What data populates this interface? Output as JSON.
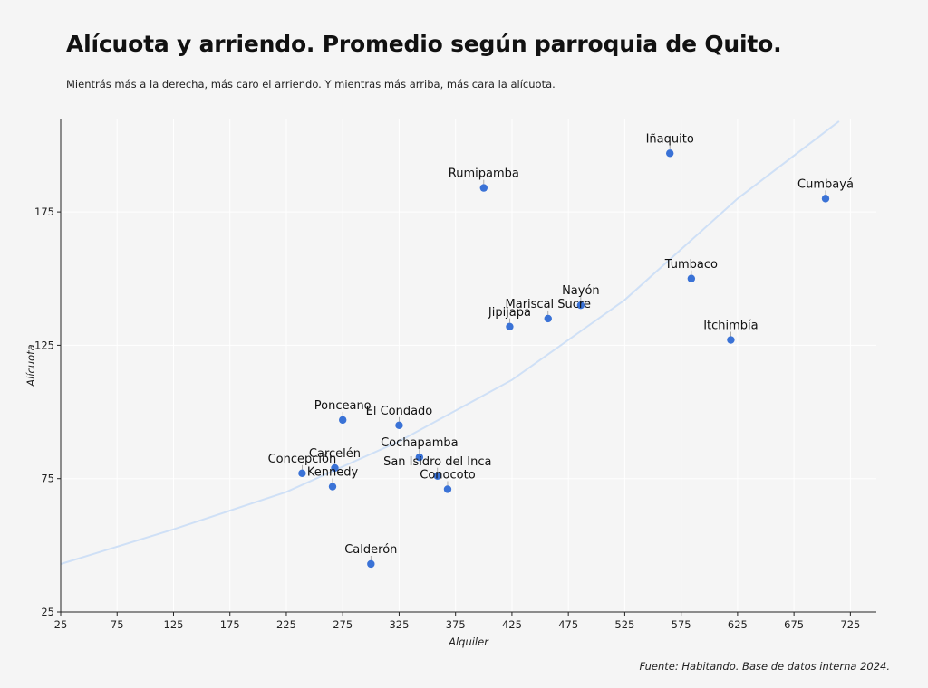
{
  "header": {
    "title": "Alícuota y arriendo. Promedio según parroquia de Quito.",
    "subtitle": "Mientrás más a la derecha, más caro el arriendo. Y mientras más arriba, más cara la alícuota."
  },
  "caption": "Fuente: Habitando. Base de datos interna 2024.",
  "colors": {
    "background": "#f5f5f5",
    "point": "#3a72d6",
    "trend": "#cfe0f6",
    "grid": "#ffffff",
    "axis": "#222222"
  },
  "chart_data": {
    "type": "scatter",
    "title": "Alícuota y arriendo. Promedio según parroquia de Quito.",
    "subtitle": "Mientrás más a la derecha, más caro el arriendo. Y mientras más arriba, más cara la alícuota.",
    "xlabel": "Alquiler",
    "ylabel": "Alícuota",
    "xlim": [
      25,
      748
    ],
    "ylim": [
      25,
      210
    ],
    "xticks": [
      25,
      75,
      125,
      175,
      225,
      275,
      325,
      375,
      425,
      475,
      525,
      575,
      625,
      675,
      725
    ],
    "yticks": [
      25,
      75,
      125,
      175
    ],
    "grid": true,
    "trendline": {
      "type": "exponential",
      "points": [
        [
          25,
          43
        ],
        [
          125,
          56
        ],
        [
          225,
          70
        ],
        [
          325,
          89
        ],
        [
          425,
          112
        ],
        [
          525,
          142
        ],
        [
          625,
          180
        ],
        [
          715,
          209
        ]
      ]
    },
    "points": [
      {
        "label": "Iñaquito",
        "x": 565,
        "y": 197
      },
      {
        "label": "Rumipamba",
        "x": 400,
        "y": 184
      },
      {
        "label": "Cumbayá",
        "x": 703,
        "y": 180
      },
      {
        "label": "Tumbaco",
        "x": 584,
        "y": 150
      },
      {
        "label": "Nayón",
        "x": 486,
        "y": 140
      },
      {
        "label": "Mariscal Sucre",
        "x": 457,
        "y": 135
      },
      {
        "label": "Jipijapa",
        "x": 423,
        "y": 132
      },
      {
        "label": "Itchimbía",
        "x": 619,
        "y": 127
      },
      {
        "label": "Ponceano",
        "x": 275,
        "y": 97
      },
      {
        "label": "El Condado",
        "x": 325,
        "y": 95
      },
      {
        "label": "Cochapamba",
        "x": 343,
        "y": 83
      },
      {
        "label": "Carcelén",
        "x": 268,
        "y": 79
      },
      {
        "label": "Concepción",
        "x": 239,
        "y": 77
      },
      {
        "label": "San Isidro del Inca",
        "x": 359,
        "y": 76
      },
      {
        "label": "Kennedy",
        "x": 266,
        "y": 72
      },
      {
        "label": "Conocoto",
        "x": 368,
        "y": 71
      },
      {
        "label": "Calderón",
        "x": 300,
        "y": 43
      }
    ]
  }
}
